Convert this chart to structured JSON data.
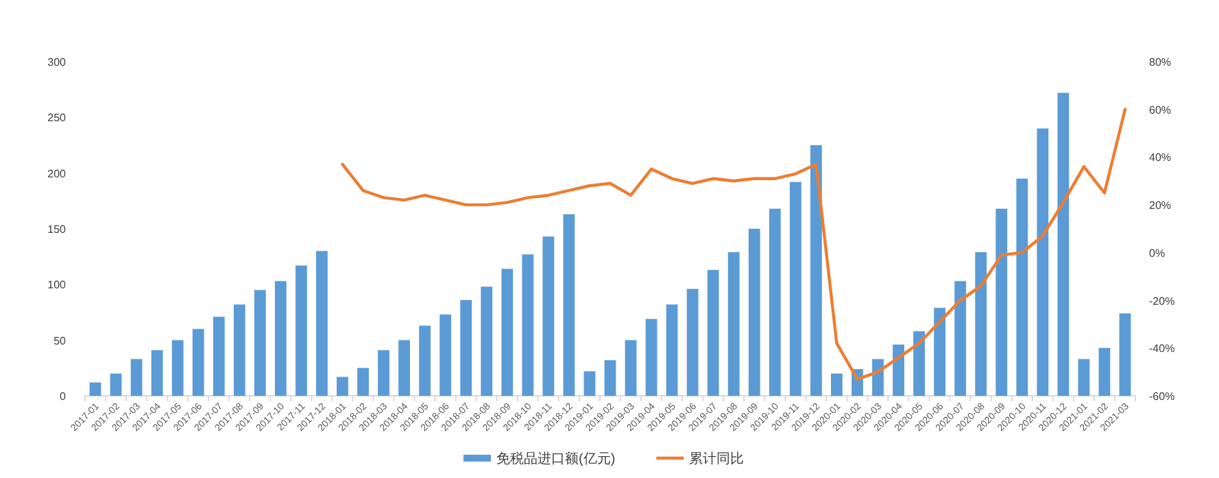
{
  "chart_data": {
    "type": "bar",
    "categories": [
      "2017-01",
      "2017-02",
      "2017-03",
      "2017-04",
      "2017-05",
      "2017-06",
      "2017-07",
      "2017-08",
      "2017-09",
      "2017-10",
      "2017-11",
      "2017-12",
      "2018-01",
      "2018-02",
      "2018-03",
      "2018-04",
      "2018-05",
      "2018-06",
      "2018-07",
      "2018-08",
      "2018-09",
      "2018-10",
      "2018-11",
      "2018-12",
      "2019-01",
      "2019-02",
      "2019-03",
      "2019-04",
      "2019-05",
      "2019-06",
      "2019-07",
      "2019-08",
      "2019-09",
      "2019-10",
      "2019-11",
      "2019-12",
      "2020-01",
      "2020-02",
      "2020-03",
      "2020-04",
      "2020-05",
      "2020-06",
      "2020-07",
      "2020-08",
      "2020-09",
      "2020-10",
      "2020-11",
      "2020-12",
      "2021-01",
      "2021-02",
      "2021-03"
    ],
    "series": [
      {
        "name": "免税品进口额(亿元)",
        "color": "#5b9bd5",
        "values": [
          12,
          20,
          33,
          41,
          50,
          60,
          71,
          82,
          95,
          103,
          117,
          130,
          17,
          25,
          41,
          50,
          63,
          73,
          86,
          98,
          114,
          127,
          143,
          163,
          22,
          32,
          50,
          69,
          82,
          96,
          113,
          129,
          150,
          168,
          192,
          225,
          20,
          24,
          33,
          46,
          58,
          79,
          103,
          129,
          168,
          195,
          240,
          272,
          33,
          43,
          74
        ]
      },
      {
        "name": "累计同比",
        "type": "line",
        "axis": "y2",
        "color": "#ed7d31",
        "values": [
          null,
          null,
          null,
          null,
          null,
          null,
          null,
          null,
          null,
          null,
          null,
          null,
          37,
          26,
          23,
          22,
          24,
          22,
          20,
          20,
          21,
          23,
          24,
          26,
          28,
          29,
          24,
          35,
          31,
          29,
          31,
          30,
          31,
          31,
          33,
          37,
          -38,
          -53,
          -50,
          -44,
          -38,
          -29,
          -20,
          -14,
          -1,
          0,
          7,
          21,
          36,
          25,
          60
        ]
      }
    ],
    "ylim": [
      0,
      300
    ],
    "yticks": [
      0,
      50,
      100,
      150,
      200,
      250,
      300
    ],
    "y2lim": [
      -60,
      80
    ],
    "y2ticks": [
      {
        "value": -60,
        "label": "-60%"
      },
      {
        "value": -40,
        "label": "-40%"
      },
      {
        "value": -20,
        "label": "-20%"
      },
      {
        "value": 0,
        "label": "0%"
      },
      {
        "value": 20,
        "label": "20%"
      },
      {
        "value": 40,
        "label": "40%"
      },
      {
        "value": 60,
        "label": "60%"
      },
      {
        "value": 80,
        "label": "80%"
      }
    ],
    "grid": false,
    "legend": "bottom",
    "marker": "none",
    "line_style": "solid"
  }
}
